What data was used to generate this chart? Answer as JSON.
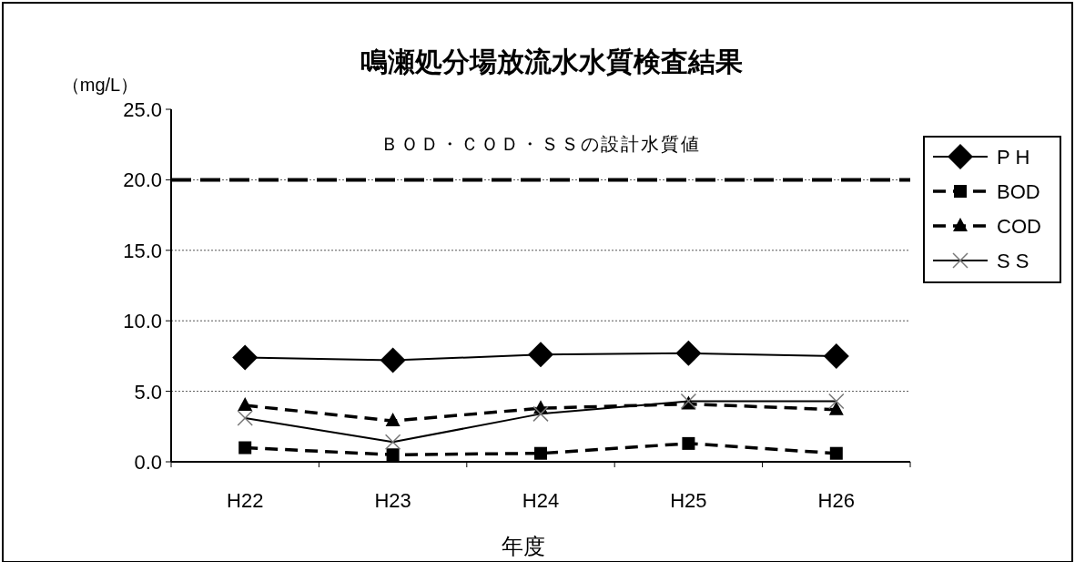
{
  "chart_data": {
    "type": "line",
    "title": "鳴瀬処分場放流水水質検査結果",
    "xlabel": "年度",
    "ylabel": "（mg/L）",
    "categories": [
      "H22",
      "H23",
      "H24",
      "H25",
      "H26"
    ],
    "series": [
      {
        "name": "P H",
        "color": "#000000",
        "values": [
          7.4,
          7.2,
          7.6,
          7.7,
          7.5
        ],
        "marker": "diamond",
        "line_style": "solid"
      },
      {
        "name": "BOD",
        "color": "#000000",
        "values": [
          1.0,
          0.5,
          0.6,
          1.3,
          0.6
        ],
        "marker": "square",
        "line_style": "dashed"
      },
      {
        "name": "COD",
        "color": "#000000",
        "values": [
          4.0,
          2.9,
          3.8,
          4.1,
          3.7
        ],
        "marker": "triangle",
        "line_style": "dashed"
      },
      {
        "name": "S S",
        "color": "#000000",
        "values": [
          3.1,
          1.4,
          3.4,
          4.3,
          4.3
        ],
        "marker": "cross",
        "line_style": "solid"
      }
    ],
    "ylim": [
      0,
      25
    ],
    "yticks": [
      {
        "value": 0,
        "label": "0.0"
      },
      {
        "value": 5,
        "label": "5.0"
      },
      {
        "value": 10,
        "label": "10.0"
      },
      {
        "value": 15,
        "label": "15.0"
      },
      {
        "value": 20,
        "label": "20.0"
      },
      {
        "value": 25,
        "label": "25.0"
      }
    ],
    "grid": "y",
    "legend": "right",
    "ref_lines": [
      {
        "axis": "y",
        "value": 20,
        "label": "ＢＯＤ・ＣＯＤ・ＳＳの設計水質値",
        "line_style": "dashed"
      }
    ]
  }
}
